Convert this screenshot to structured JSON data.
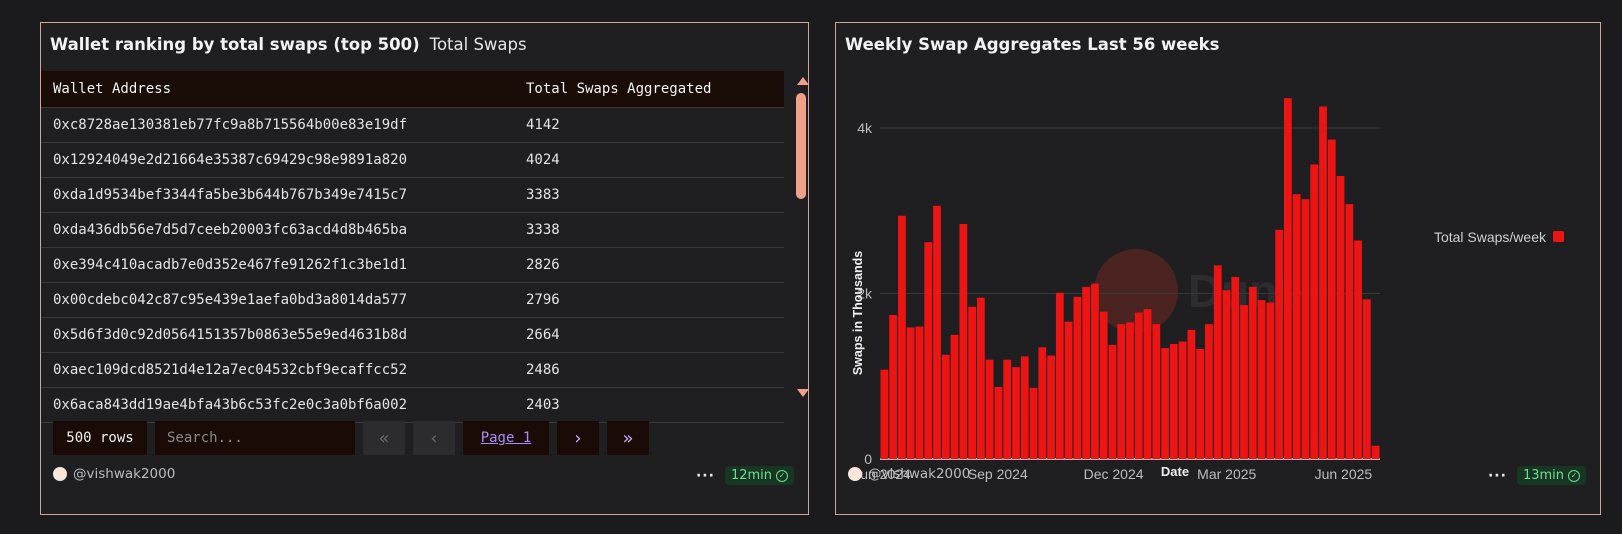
{
  "table_panel": {
    "title": "Wallet ranking by total swaps (top 500)",
    "subtitle": "Total Swaps",
    "columns": [
      "Wallet Address",
      "Total Swaps Aggregated"
    ],
    "rows": [
      [
        "0xc8728ae130381eb77fc9a8b715564b00e83e19df",
        "4142"
      ],
      [
        "0x12924049e2d21664e35387c69429c98e9891a820",
        "4024"
      ],
      [
        "0xda1d9534bef3344fa5be3b644b767b349e7415c7",
        "3383"
      ],
      [
        "0xda436db56e7d5d7ceeb20003fc63acd4d8b465ba",
        "3338"
      ],
      [
        "0xe394c410acadb7e0d352e467fe91262f1c3be1d1",
        "2826"
      ],
      [
        "0x00cdebc042c87c95e439e1aefa0bd3a8014da577",
        "2796"
      ],
      [
        "0x5d6f3d0c92d0564151357b0863e55e9ed4631b8d",
        "2664"
      ],
      [
        "0xaec109dcd8521d4e12a7ec04532cbf9ecaffcc52",
        "2486"
      ],
      [
        "0x6aca843dd19ae4bfa43b6c53fc2e0c3a0bf6a002",
        "2403"
      ]
    ],
    "row_count": "500 rows",
    "search_placeholder": "Search...",
    "page_label": "Page 1",
    "author": "@vishwak2000",
    "age": "12min"
  },
  "chart_panel": {
    "title": "Weekly Swap Aggregates Last 56 weeks",
    "author": "@vishwak2000",
    "age": "13min",
    "watermark": "Dune"
  },
  "colors": {
    "bar": "#ed1414",
    "accent": "#f1a08a",
    "panel_border": "#d3a59a"
  },
  "chart_data": {
    "type": "bar",
    "xlabel": "Date",
    "ylabel": "Swaps in Thousands",
    "y_ticks": [
      "0",
      "2k",
      "4k"
    ],
    "x_ticks": [
      "Jun 2024",
      "Sep 2024",
      "Dec 2024",
      "Mar 2025",
      "Jun 2025"
    ],
    "ylim": [
      0,
      4000
    ],
    "legend_position": "right",
    "grid": true,
    "series": [
      {
        "name": "Total Swaps/week",
        "values": [
          1080,
          1740,
          2940,
          1590,
          1600,
          2620,
          3060,
          1260,
          1500,
          2840,
          1840,
          1950,
          1200,
          870,
          1200,
          1110,
          1240,
          860,
          1350,
          1250,
          2010,
          1660,
          1960,
          2080,
          2120,
          1780,
          1380,
          1630,
          1650,
          1770,
          1810,
          1630,
          1340,
          1390,
          1420,
          1560,
          1330,
          1630,
          2340,
          2040,
          2200,
          1860,
          2080,
          1920,
          1890,
          2770,
          4360,
          3200,
          3140,
          3560,
          4260,
          3860,
          3420,
          3080,
          2640,
          1930,
          160
        ]
      }
    ]
  }
}
